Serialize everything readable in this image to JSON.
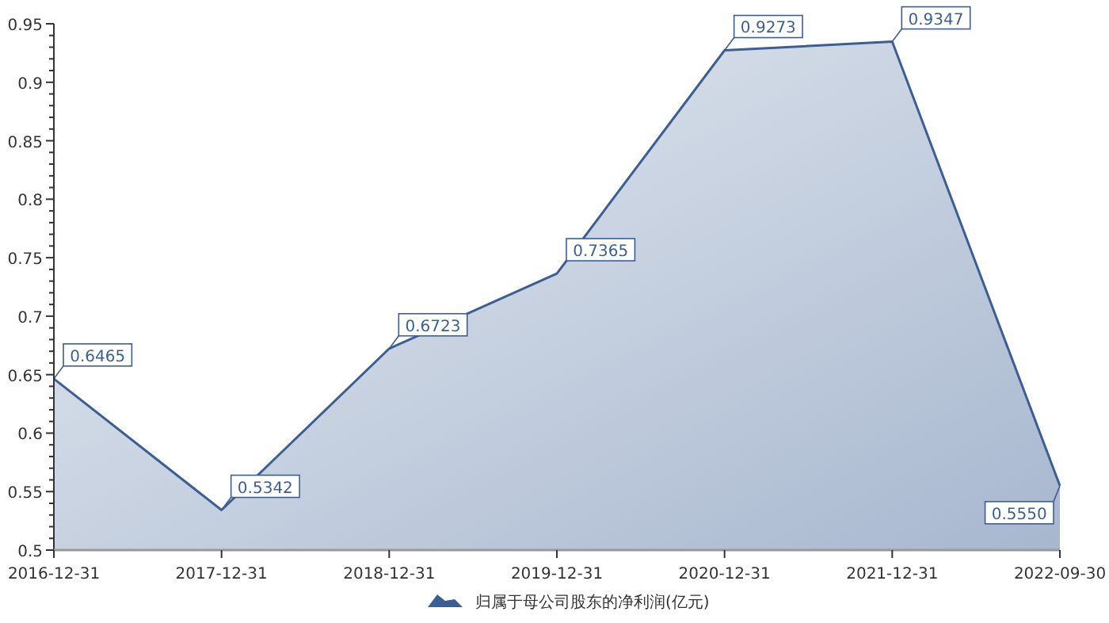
{
  "chart_data": {
    "type": "area",
    "categories": [
      "2016-12-31",
      "2017-12-31",
      "2018-12-31",
      "2019-12-31",
      "2020-12-31",
      "2021-12-31",
      "2022-09-30"
    ],
    "series": [
      {
        "name": "归属于母公司股东的净利润(亿元)",
        "color": "#3b5f94",
        "values": [
          0.6465,
          0.5342,
          0.6723,
          0.7365,
          0.9273,
          0.9347,
          0.555
        ],
        "value_labels": [
          "0.6465",
          "0.5342",
          "0.6723",
          "0.7365",
          "0.9273",
          "0.9347",
          "0.5550"
        ]
      }
    ],
    "ylim": [
      0.5,
      0.95
    ],
    "yticks": [
      0.5,
      {
        "value": 0.51,
        "label": null
      },
      {
        "value": 0.52,
        "label": null
      },
      {
        "value": 0.53,
        "label": null
      },
      {
        "value": 0.54,
        "label": null
      },
      0.55,
      {
        "value": 0.56,
        "label": null
      },
      {
        "value": 0.57,
        "label": null
      },
      {
        "value": 0.58,
        "label": null
      },
      {
        "value": 0.59,
        "label": null
      },
      0.6,
      {
        "value": 0.61,
        "label": null
      },
      {
        "value": 0.62,
        "label": null
      },
      {
        "value": 0.63,
        "label": null
      },
      {
        "value": 0.64,
        "label": null
      },
      0.65,
      {
        "value": 0.66,
        "label": null
      },
      {
        "value": 0.67,
        "label": null
      },
      {
        "value": 0.68,
        "label": null
      },
      {
        "value": 0.69,
        "label": null
      },
      0.7,
      {
        "value": 0.71,
        "label": null
      },
      {
        "value": 0.72,
        "label": null
      },
      {
        "value": 0.73,
        "label": null
      },
      {
        "value": 0.74,
        "label": null
      },
      0.75,
      {
        "value": 0.76,
        "label": null
      },
      {
        "value": 0.77,
        "label": null
      },
      {
        "value": 0.78,
        "label": null
      },
      {
        "value": 0.79,
        "label": null
      },
      0.8,
      {
        "value": 0.81,
        "label": null
      },
      {
        "value": 0.82,
        "label": null
      },
      {
        "value": 0.83,
        "label": null
      },
      {
        "value": 0.84,
        "label": null
      },
      0.85,
      {
        "value": 0.86,
        "label": null
      },
      {
        "value": 0.87,
        "label": null
      },
      {
        "value": 0.88,
        "label": null
      },
      {
        "value": 0.89,
        "label": null
      },
      0.9,
      {
        "value": 0.91,
        "label": null
      },
      {
        "value": 0.92,
        "label": null
      },
      {
        "value": 0.93,
        "label": null
      },
      {
        "value": 0.94,
        "label": null
      },
      0.95
    ],
    "legend": "bottom",
    "grid": false
  }
}
